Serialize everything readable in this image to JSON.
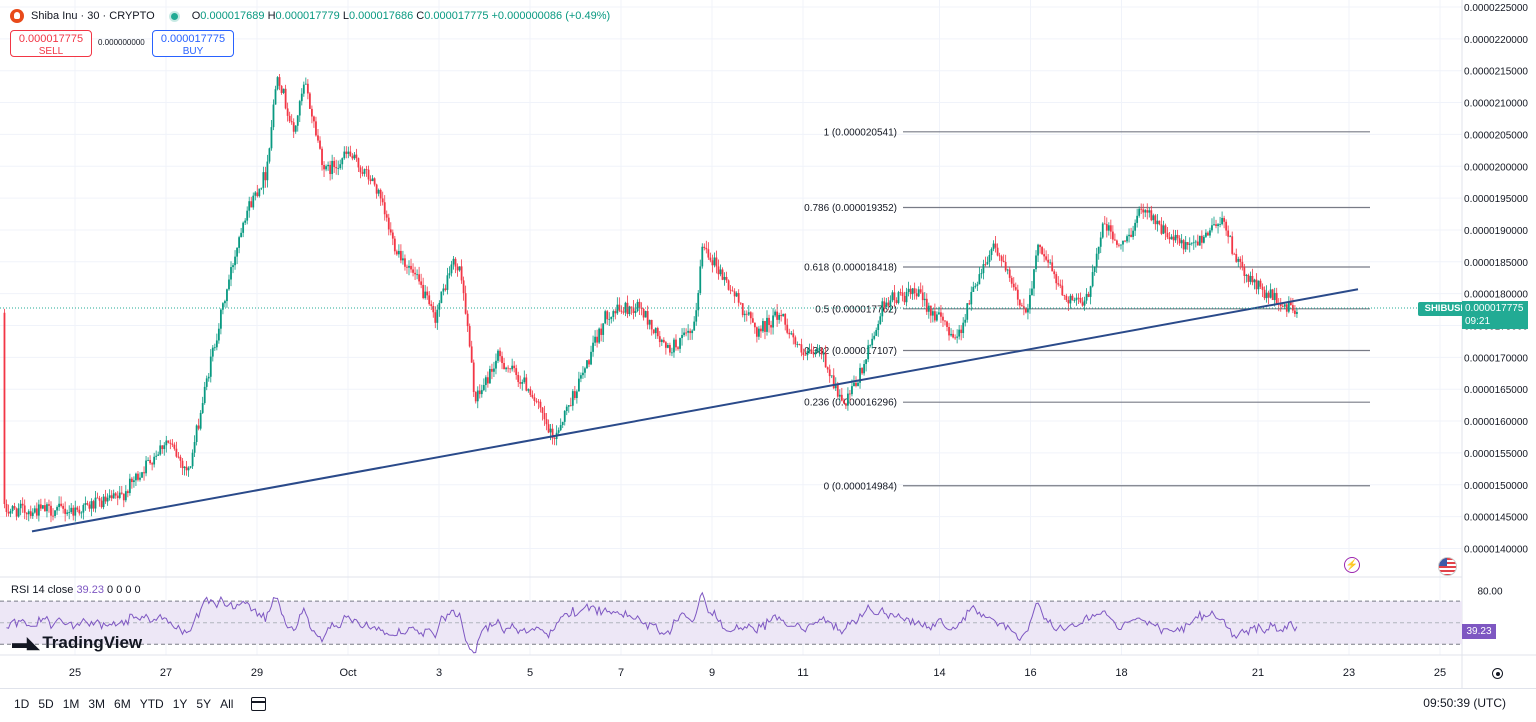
{
  "header": {
    "symbol": "Shiba Inu · 30 · CRYPTO",
    "ohlc": [
      {
        "k": "O",
        "v": "0.000017689"
      },
      {
        "k": "H",
        "v": "0.000017779"
      },
      {
        "k": "L",
        "v": "0.000017686"
      },
      {
        "k": "C",
        "v": "0.000017775"
      }
    ],
    "change": "+0.000000086 (+0.49%)",
    "sell_price": "0.000017775",
    "sell_label": "SELL",
    "buy_price": "0.000017775",
    "buy_label": "BUY",
    "spread": "0.000000000"
  },
  "colors": {
    "up": "#089981",
    "down": "#f23645",
    "trendline": "#2a4a8a",
    "fib": "#787b86",
    "rsi": "#7e57c2",
    "rsi_band": "#ede7f6",
    "last_price": "#22ab94"
  },
  "price_axis": [
    "0.0000225000",
    "0.0000220000",
    "0.0000215000",
    "0.0000210000",
    "0.0000205000",
    "0.0000200000",
    "0.0000195000",
    "0.0000190000",
    "0.0000185000",
    "0.0000180000",
    "0.0000175000",
    "0.0000170000",
    "0.0000165000",
    "0.0000160000",
    "0.0000155000",
    "0.0000150000",
    "0.0000145000",
    "0.0000140000"
  ],
  "time_axis": [
    "25",
    "27",
    "29",
    "Oct",
    "3",
    "5",
    "7",
    "9",
    "11",
    "14",
    "16",
    "18",
    "21",
    "23",
    "25"
  ],
  "last_price_tag": {
    "symbol": "SHIBUSD",
    "price": "0.000017775",
    "countdown": "09:21"
  },
  "chart_data": {
    "type": "candlestick",
    "symbol": "Shiba Inu",
    "interval": "30",
    "exchange": "CRYPTO",
    "ylim": [
      1.38e-05,
      2.25e-05
    ],
    "x_ticks": [
      "25",
      "27",
      "29",
      "Oct",
      "3",
      "5",
      "7",
      "9",
      "11",
      "14",
      "16",
      "18",
      "21",
      "23",
      "25"
    ],
    "fibonacci_levels": [
      {
        "label": "1 (0.000020541)",
        "level": 1,
        "price": 2.0541e-05
      },
      {
        "label": "0.786 (0.000019352)",
        "level": 0.786,
        "price": 1.9352e-05
      },
      {
        "label": "0.618 (0.000018418)",
        "level": 0.618,
        "price": 1.8418e-05
      },
      {
        "label": "0.5 (0.000017762)",
        "level": 0.5,
        "price": 1.7762e-05
      },
      {
        "label": "0.382 (0.000017107)",
        "level": 0.382,
        "price": 1.7107e-05
      },
      {
        "label": "0.236 (0.000016296)",
        "level": 0.236,
        "price": 1.6296e-05
      },
      {
        "label": "0 (0.000014984)",
        "level": 0,
        "price": 1.4984e-05
      }
    ],
    "trendline": {
      "start": {
        "x": 24.3,
        "price": 1.43e-05
      },
      "end": {
        "x": 23.4,
        "price": 1.81e-05
      }
    },
    "price_path": [
      {
        "x": 0.0,
        "price": 1.46e-05
      },
      {
        "x": 1.0,
        "price": 1.48e-05
      },
      {
        "x": 2.0,
        "price": 1.57e-05
      },
      {
        "x": 2.5,
        "price": 1.52e-05
      },
      {
        "x": 3.0,
        "price": 1.7e-05
      },
      {
        "x": 3.7,
        "price": 1.92e-05
      },
      {
        "x": 4.2,
        "price": 1.99e-05
      },
      {
        "x": 4.45,
        "price": 2.15e-05
      },
      {
        "x": 4.8,
        "price": 2.05e-05
      },
      {
        "x": 5.05,
        "price": 2.13e-05
      },
      {
        "x": 5.5,
        "price": 1.99e-05
      },
      {
        "x": 6.0,
        "price": 2.02e-05
      },
      {
        "x": 6.6,
        "price": 1.97e-05
      },
      {
        "x": 7.0,
        "price": 1.88e-05
      },
      {
        "x": 7.6,
        "price": 1.81e-05
      },
      {
        "x": 7.9,
        "price": 1.76e-05
      },
      {
        "x": 8.3,
        "price": 1.85e-05
      },
      {
        "x": 8.5,
        "price": 1.83e-05
      },
      {
        "x": 8.8,
        "price": 1.63e-05
      },
      {
        "x": 9.3,
        "price": 1.7e-05
      },
      {
        "x": 10.0,
        "price": 1.65e-05
      },
      {
        "x": 10.5,
        "price": 1.57e-05
      },
      {
        "x": 11.2,
        "price": 1.68e-05
      },
      {
        "x": 11.7,
        "price": 1.77e-05
      },
      {
        "x": 12.4,
        "price": 1.78e-05
      },
      {
        "x": 13.0,
        "price": 1.71e-05
      },
      {
        "x": 13.6,
        "price": 1.74e-05
      },
      {
        "x": 13.8,
        "price": 1.88e-05
      },
      {
        "x": 14.3,
        "price": 1.82e-05
      },
      {
        "x": 15.0,
        "price": 1.74e-05
      },
      {
        "x": 15.5,
        "price": 1.77e-05
      },
      {
        "x": 16.0,
        "price": 1.7e-05
      },
      {
        "x": 16.4,
        "price": 1.71e-05
      },
      {
        "x": 16.9,
        "price": 1.62e-05
      },
      {
        "x": 17.3,
        "price": 1.68e-05
      },
      {
        "x": 17.8,
        "price": 1.79e-05
      },
      {
        "x": 18.5,
        "price": 1.8e-05
      },
      {
        "x": 19.0,
        "price": 1.76e-05
      },
      {
        "x": 19.4,
        "price": 1.73e-05
      },
      {
        "x": 19.8,
        "price": 1.82e-05
      },
      {
        "x": 20.2,
        "price": 1.88e-05
      },
      {
        "x": 20.6,
        "price": 1.81e-05
      },
      {
        "x": 20.9,
        "price": 1.77e-05
      },
      {
        "x": 21.2,
        "price": 1.88e-05
      },
      {
        "x": 21.7,
        "price": 1.8e-05
      },
      {
        "x": 22.2,
        "price": 1.78e-05
      },
      {
        "x": 22.6,
        "price": 1.91e-05
      },
      {
        "x": 23.0,
        "price": 1.87e-05
      },
      {
        "x": 23.5,
        "price": 1.94e-05
      },
      {
        "x": 24.0,
        "price": 1.89e-05
      },
      {
        "x": 24.5,
        "price": 1.87e-05
      },
      {
        "x": 25.2,
        "price": 1.92e-05
      },
      {
        "x": 25.6,
        "price": 1.84e-05
      },
      {
        "x": 26.0,
        "price": 1.81e-05
      },
      {
        "x": 26.6,
        "price": 1.78e-05
      },
      {
        "x": 26.9,
        "price": 1.77e-05
      }
    ],
    "rsi": {
      "label": "RSI 14 close",
      "value": "39.23",
      "extra": "0 0 0 0",
      "axis_label": "80.00",
      "upper_band": 70,
      "lower_band": 30,
      "ylim": [
        20,
        85
      ]
    }
  },
  "toolbar": {
    "timeframes": [
      "1D",
      "5D",
      "1M",
      "3M",
      "6M",
      "YTD",
      "1Y",
      "5Y",
      "All"
    ],
    "clock": "09:50:39 (UTC)"
  },
  "brand": "TradingView"
}
